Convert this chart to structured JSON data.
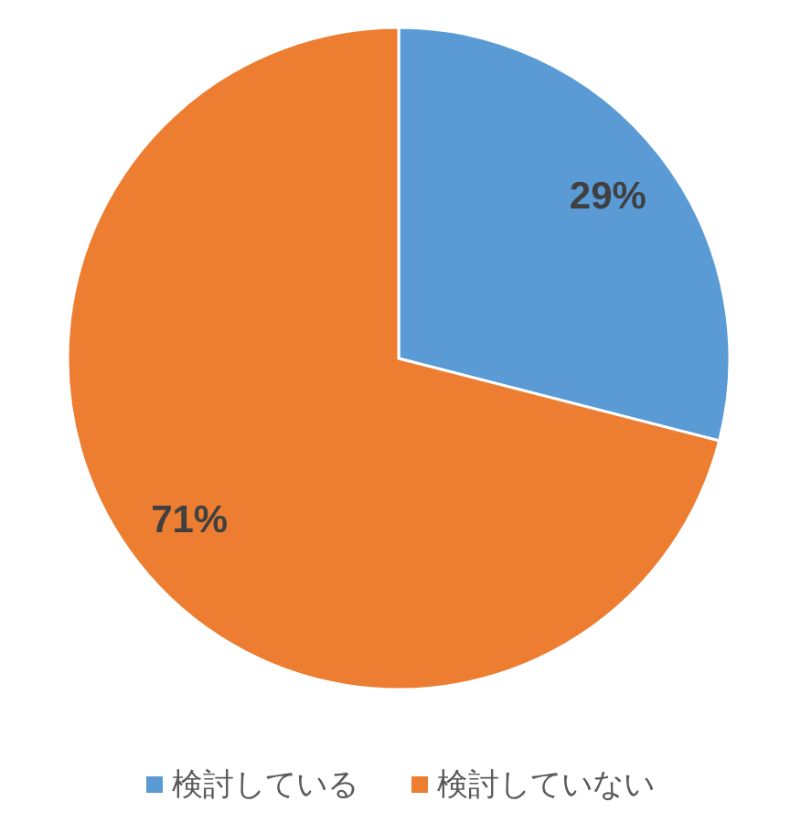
{
  "chart_data": {
    "type": "pie",
    "categories": [
      "検討している",
      "検討していない"
    ],
    "values": [
      29,
      71
    ],
    "colors": [
      "#5b9bd5",
      "#ed7d31"
    ],
    "value_labels": [
      "29%",
      "71%"
    ],
    "legend": "bottom"
  }
}
